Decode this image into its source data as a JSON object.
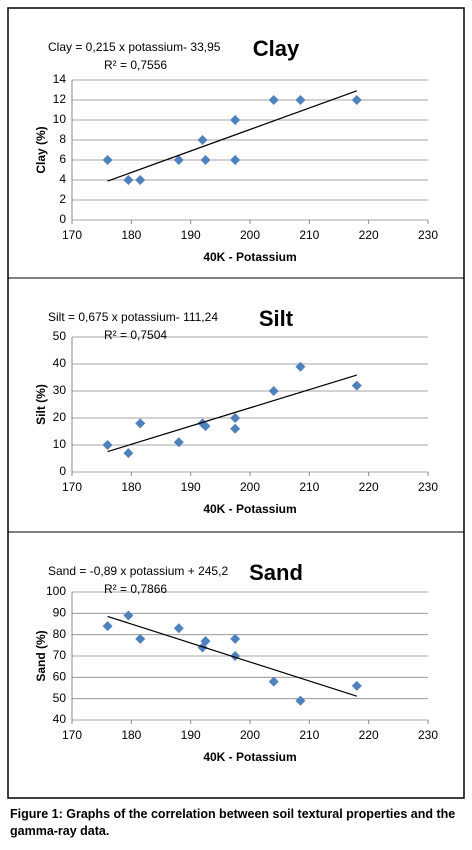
{
  "chart_data": [
    {
      "type": "scatter",
      "title": "Clay",
      "annotations": [
        "Clay = 0,215 x potassium- 33,95",
        "R² = 0,7556"
      ],
      "xlabel": "40K - Potassium",
      "ylabel": "Clay (%)",
      "color": "#4f81bd",
      "x": [
        176,
        179.5,
        181.5,
        188,
        192,
        192.5,
        197.5,
        197.5,
        204,
        208.5,
        218
      ],
      "values": [
        6,
        4,
        4,
        6,
        8,
        6,
        10,
        6,
        12,
        12,
        12
      ],
      "trendline": {
        "x": [
          176,
          218
        ],
        "values": [
          3.89,
          12.92
        ]
      },
      "xlim": [
        170,
        230
      ],
      "xticks": [
        170,
        180,
        190,
        200,
        210,
        220,
        230
      ],
      "ylim": [
        0,
        14
      ],
      "yticks": [
        0,
        2,
        4,
        6,
        8,
        10,
        12,
        14
      ],
      "grid": true
    },
    {
      "type": "scatter",
      "title": "Silt",
      "annotations": [
        "Silt = 0,675 x potassium- 111,24",
        "R² = 0,7504"
      ],
      "xlabel": "40K - Potassium",
      "ylabel": "Silt (%)",
      "color": "#4f81bd",
      "x": [
        176,
        179.5,
        181.5,
        188,
        192,
        192.5,
        197.5,
        197.5,
        204,
        208.5,
        218
      ],
      "values": [
        10,
        7,
        18,
        11,
        18,
        17,
        20,
        16,
        30,
        39,
        32
      ],
      "trendline": {
        "x": [
          176,
          218
        ],
        "values": [
          7.56,
          35.91
        ]
      },
      "xlim": [
        170,
        230
      ],
      "xticks": [
        170,
        180,
        190,
        200,
        210,
        220,
        230
      ],
      "ylim": [
        0,
        50
      ],
      "yticks": [
        0,
        10,
        20,
        30,
        40,
        50
      ],
      "grid": true
    },
    {
      "type": "scatter",
      "title": "Sand",
      "annotations": [
        "Sand = -0,89 x potassium + 245,2",
        "R² = 0,7866"
      ],
      "xlabel": "40K - Potassium",
      "ylabel": "Sand (%)",
      "color": "#4f81bd",
      "x": [
        176,
        179.5,
        181.5,
        188,
        192,
        192.5,
        197.5,
        197.5,
        204,
        208.5,
        218
      ],
      "values": [
        84,
        89,
        78,
        83,
        74,
        77,
        78,
        70,
        58,
        49,
        56
      ],
      "trendline": {
        "x": [
          176,
          218
        ],
        "values": [
          88.56,
          51.18
        ]
      },
      "xlim": [
        170,
        230
      ],
      "xticks": [
        170,
        180,
        190,
        200,
        210,
        220,
        230
      ],
      "ylim": [
        40,
        100
      ],
      "yticks": [
        40,
        50,
        60,
        70,
        80,
        90,
        100
      ],
      "grid": true
    }
  ],
  "caption": "Figure 1: Graphs of the correlation between soil textural properties and the gamma-ray data."
}
